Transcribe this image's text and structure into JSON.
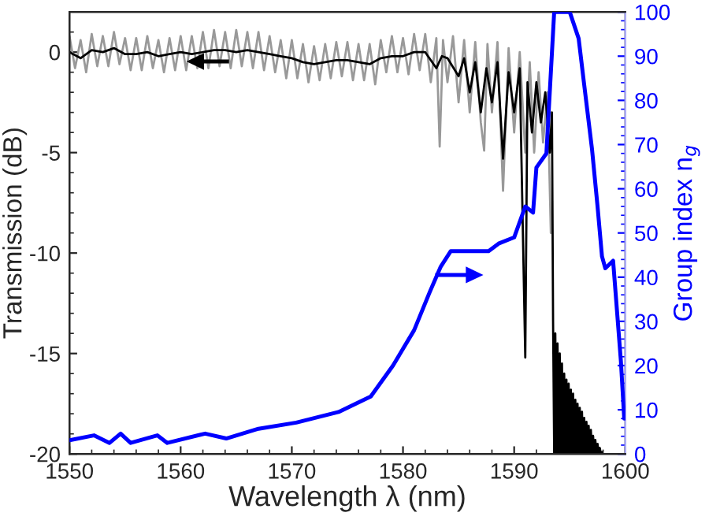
{
  "chart_data": {
    "type": "line",
    "xlabel": "Wavelength λ (nm)",
    "ylabel": "Transmission (dB)",
    "y2label": "Group index n$_{g}$",
    "xlim": [
      1550,
      1600
    ],
    "xticks": [
      1550,
      1560,
      1570,
      1580,
      1590,
      1600
    ],
    "ylim": [
      -20,
      2
    ],
    "yticks": [
      -20,
      -15,
      -10,
      -5,
      0
    ],
    "y2lim": [
      0,
      100
    ],
    "y2ticks": [
      0,
      10,
      20,
      30,
      40,
      50,
      60,
      70,
      80,
      90,
      100
    ],
    "line_style": "solid",
    "series": [
      {
        "color": "#999999",
        "x": [
          1550,
          1550.5,
          1551,
          1551.5,
          1552,
          1552.5,
          1553,
          1553.5,
          1554,
          1554.5,
          1555,
          1555.5,
          1556,
          1556.5,
          1557,
          1557.5,
          1558,
          1558.5,
          1559,
          1559.5,
          1560,
          1560.5,
          1561,
          1561.5,
          1562,
          1562.5,
          1563,
          1563.5,
          1564,
          1564.5,
          1565,
          1565.5,
          1566,
          1566.5,
          1567,
          1567.5,
          1568,
          1568.5,
          1569,
          1569.5,
          1570,
          1570.5,
          1571,
          1571.5,
          1572,
          1572.5,
          1573,
          1573.5,
          1574,
          1574.5,
          1575,
          1575.5,
          1576,
          1576.5,
          1577,
          1577.5,
          1578,
          1578.5,
          1579,
          1579.5,
          1580,
          1580.5,
          1581,
          1581.5,
          1582,
          1582.5,
          1583,
          1583.3,
          1583.6,
          1584,
          1584.5,
          1585,
          1585.5,
          1586,
          1586.5,
          1587,
          1587.3,
          1587.6,
          1588,
          1588.5,
          1589,
          1589.5,
          1590,
          1590.5,
          1591,
          1591.4,
          1591.8,
          1592.2,
          1592.6,
          1593,
          1593.3
        ],
        "values": [
          0.8,
          -0.8,
          0.6,
          -1.0,
          0.9,
          -0.7,
          0.8,
          -0.7,
          1.0,
          -0.6,
          0.7,
          -0.9,
          0.7,
          -0.9,
          0.8,
          -0.8,
          0.6,
          -1.0,
          0.7,
          -0.9,
          0.8,
          -0.9,
          0.8,
          -0.8,
          1.0,
          -0.8,
          1.1,
          -0.7,
          1.0,
          -0.8,
          1.1,
          -0.7,
          1.0,
          -0.8,
          1.0,
          -0.9,
          0.8,
          -1.0,
          0.6,
          -1.3,
          0.6,
          -1.3,
          0.4,
          -1.5,
          0.3,
          -1.4,
          0.4,
          -1.3,
          0.5,
          -1.2,
          0.5,
          -1.4,
          0.4,
          -1.4,
          0.4,
          -1.6,
          0.6,
          -1.0,
          0.8,
          -1.0,
          0.7,
          -1.1,
          0.9,
          -0.9,
          0.9,
          -1.5,
          0.7,
          -4.7,
          0.6,
          -1.5,
          0.8,
          -2.5,
          0.6,
          -3.0,
          0.5,
          -3.5,
          -4.9,
          0.4,
          -3.0,
          0.5,
          -6.9,
          0.2,
          -4.0,
          0.0,
          -5.0,
          -0.5,
          -5.0,
          -1.0,
          -4.5,
          -2.0,
          -9.0
        ]
      },
      {
        "color": "#000000",
        "x": [
          1550,
          1551,
          1552,
          1553,
          1554,
          1555,
          1556,
          1557,
          1558,
          1559,
          1560,
          1561,
          1562,
          1563,
          1564,
          1565,
          1566,
          1567,
          1568,
          1569,
          1570,
          1571,
          1572,
          1573,
          1574,
          1575,
          1576,
          1577,
          1578,
          1579,
          1580,
          1581,
          1582,
          1583,
          1583.5,
          1584,
          1585,
          1585.5,
          1586,
          1586.5,
          1587,
          1587.5,
          1588,
          1588.5,
          1589,
          1589.5,
          1590,
          1590.5,
          1591,
          1591.2,
          1591.6,
          1592,
          1592.4,
          1592.8,
          1593.2,
          1593.4,
          1593.5,
          1593.6,
          1593.7,
          1593.8,
          1593.9,
          1594,
          1594.1,
          1594.2,
          1594.3,
          1594.4,
          1594.5,
          1594.6,
          1594.7,
          1594.8,
          1594.9,
          1595,
          1595.1,
          1595.2,
          1595.3,
          1595.4,
          1595.5,
          1595.6,
          1595.7,
          1595.8,
          1595.9,
          1596,
          1596.1,
          1596.2,
          1596.3,
          1596.4,
          1596.5,
          1596.6,
          1596.7,
          1596.8,
          1596.9,
          1597,
          1597.1,
          1597.2,
          1597.3,
          1597.4,
          1597.5,
          1597.6,
          1597.7,
          1597.8,
          1597.9
        ],
        "values": [
          0.0,
          -0.3,
          0.1,
          0.0,
          0.2,
          -0.1,
          -0.1,
          0.0,
          -0.2,
          -0.1,
          0.0,
          -0.1,
          0.0,
          0.1,
          0.1,
          0.0,
          0.1,
          0.0,
          -0.1,
          -0.2,
          -0.3,
          -0.5,
          -0.6,
          -0.5,
          -0.4,
          -0.4,
          -0.5,
          -0.6,
          -0.3,
          -0.2,
          -0.2,
          0.0,
          0.0,
          -0.8,
          -0.2,
          -0.3,
          -1.2,
          -0.3,
          -2.0,
          -0.5,
          -3.0,
          -0.8,
          -2.5,
          -0.5,
          -5.3,
          -1.0,
          -3.0,
          -0.8,
          -15.2,
          -1.5,
          -4.0,
          -1.5,
          -3.5,
          -2.0,
          -5.0,
          -3.0,
          -13.4,
          -20,
          -14.0,
          -20,
          -14.5,
          -20,
          -15.0,
          -20,
          -15.5,
          -20,
          -16.0,
          -20,
          -16.3,
          -20,
          -16.5,
          -20,
          -16.8,
          -20,
          -17.0,
          -20,
          -17.3,
          -20,
          -17.5,
          -20,
          -17.7,
          -20,
          -17.9,
          -20,
          -18.2,
          -20,
          -18.4,
          -20,
          -18.6,
          -20,
          -18.8,
          -20,
          -19.1,
          -20,
          -19.3,
          -20,
          -19.5,
          -20,
          -19.7,
          -20,
          -19.9
        ]
      },
      {
        "color": "#0000ff",
        "axis": "y2",
        "x": [
          1550,
          1552.2,
          1553.6,
          1554.6,
          1555.5,
          1557.9,
          1558.8,
          1562.2,
          1564.1,
          1567,
          1570.4,
          1574.2,
          1577.1,
          1579.1,
          1581,
          1582.4,
          1583.4,
          1584.3,
          1587.7,
          1588.6,
          1590,
          1591,
          1591.7,
          1592,
          1592.9,
          1593.6,
          1595,
          1595.8,
          1596.3,
          1597,
          1597.5,
          1597.9,
          1598.2,
          1598.9,
          1599.6,
          1599.9
        ],
        "values": [
          3.1,
          4.2,
          2.5,
          4.6,
          2.5,
          4.2,
          2.5,
          4.6,
          3.5,
          5.7,
          7.1,
          9.5,
          13,
          20,
          28,
          36.6,
          42.4,
          45.9,
          45.9,
          47.6,
          49,
          56,
          54.6,
          64.8,
          68,
          100,
          100,
          94,
          83.5,
          69,
          56,
          44.7,
          42,
          43.7,
          21,
          8
        ]
      }
    ]
  }
}
